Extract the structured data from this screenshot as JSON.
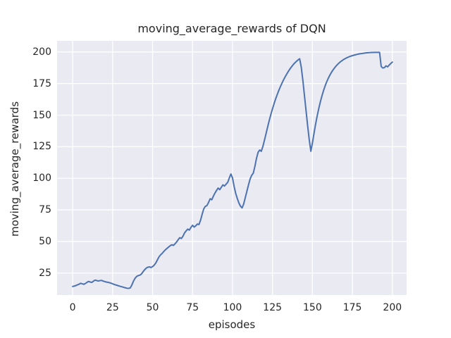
{
  "figure": {
    "title": "moving_average_rewards of DQN",
    "xlabel": "episodes",
    "ylabel": "moving_average_rewards"
  },
  "chart_data": {
    "type": "line",
    "title": "moving_average_rewards of DQN",
    "xlabel": "episodes",
    "ylabel": "moving_average_rewards",
    "xticks": [
      0,
      25,
      50,
      75,
      100,
      125,
      150,
      175,
      200
    ],
    "yticks": [
      25,
      50,
      75,
      100,
      125,
      150,
      175,
      200
    ],
    "xlim": [
      -9.75,
      208.9
    ],
    "ylim": [
      7.6,
      208.8
    ],
    "grid": true,
    "legend": false,
    "axes_bg": "#eaeaf2",
    "grid_color": "#ffffff",
    "line_color": "#4c72b0",
    "text_color": "#262626",
    "series": [
      {
        "name": "DQN moving average rewards",
        "x": [
          0,
          1,
          2,
          3,
          4,
          5,
          6,
          7,
          8,
          9,
          10,
          11,
          12,
          13,
          14,
          15,
          16,
          17,
          18,
          19,
          20,
          21,
          22,
          23,
          24,
          25,
          26,
          27,
          28,
          29,
          30,
          31,
          32,
          33,
          34,
          35,
          36,
          37,
          38,
          39,
          40,
          41,
          42,
          43,
          44,
          45,
          46,
          47,
          48,
          49,
          50,
          51,
          52,
          53,
          54,
          55,
          56,
          57,
          58,
          59,
          60,
          61,
          62,
          63,
          64,
          65,
          66,
          67,
          68,
          69,
          70,
          71,
          72,
          73,
          74,
          75,
          76,
          77,
          78,
          79,
          80,
          81,
          82,
          83,
          84,
          85,
          86,
          87,
          88,
          89,
          90,
          91,
          92,
          93,
          94,
          95,
          96,
          97,
          98,
          99,
          100,
          101,
          102,
          103,
          104,
          105,
          106,
          107,
          108,
          109,
          110,
          111,
          112,
          113,
          114,
          115,
          116,
          117,
          118,
          119,
          120,
          121,
          122,
          123,
          124,
          125,
          126,
          127,
          128,
          129,
          130,
          131,
          132,
          133,
          134,
          135,
          136,
          137,
          138,
          139,
          140,
          141,
          142,
          143,
          144,
          145,
          146,
          147,
          148,
          149,
          150,
          151,
          152,
          153,
          154,
          155,
          156,
          157,
          158,
          159,
          160,
          161,
          162,
          163,
          164,
          165,
          166,
          167,
          168,
          169,
          170,
          171,
          172,
          173,
          174,
          175,
          176,
          177,
          178,
          179,
          180,
          181,
          182,
          183,
          184,
          185,
          186,
          187,
          188,
          189,
          190,
          191,
          192,
          193,
          194,
          195,
          196,
          197,
          198,
          199,
          200
        ],
        "y": [
          14.4,
          14.7,
          15.1,
          15.7,
          16.2,
          16.9,
          16.5,
          16.1,
          16.8,
          17.7,
          18.4,
          17.9,
          17.6,
          18.6,
          19.4,
          19.1,
          18.7,
          19,
          19.2,
          18.7,
          18.3,
          17.9,
          17.7,
          17.4,
          17,
          16.5,
          16,
          15.6,
          15.2,
          14.8,
          14.4,
          14.1,
          13.7,
          13.3,
          13,
          12.9,
          13.2,
          15.5,
          18.5,
          20.8,
          22.3,
          23,
          23.3,
          24.2,
          26,
          27.6,
          28.9,
          29.6,
          29.9,
          29.4,
          30.1,
          31.3,
          33,
          35.4,
          37.8,
          39.4,
          40.6,
          42.1,
          43.4,
          44.5,
          45.6,
          46.6,
          47.4,
          46.9,
          48.1,
          49.6,
          51.4,
          53,
          52.4,
          54.2,
          56.8,
          58.4,
          59.8,
          59,
          61.2,
          62.8,
          61.4,
          62.4,
          63.8,
          63.4,
          66.8,
          71.5,
          75.8,
          77.8,
          78.4,
          80.9,
          83.8,
          83,
          85.8,
          88.3,
          90.4,
          92.3,
          91,
          92.9,
          94.8,
          93.9,
          95.4,
          96.8,
          100.3,
          103.4,
          100.2,
          93.6,
          88,
          84,
          80.4,
          77.9,
          76.6,
          79.8,
          84.8,
          89.8,
          94.8,
          99.4,
          102.4,
          104.1,
          109.5,
          115.8,
          120.6,
          122.4,
          121.4,
          125.3,
          130.2,
          135.5,
          140.8,
          145.9,
          150.6,
          155,
          159.1,
          162.9,
          166.4,
          169.7,
          172.7,
          175.5,
          178.1,
          180.5,
          182.7,
          184.8,
          186.7,
          188.4,
          190,
          191.4,
          192.6,
          193.7,
          194.6,
          188,
          177.5,
          165.5,
          153.5,
          141.5,
          130.5,
          121.4,
          128,
          135.8,
          143,
          149.6,
          155.5,
          160.8,
          165.5,
          169.7,
          173.4,
          176.6,
          179.4,
          181.9,
          184.1,
          186,
          187.7,
          189.2,
          190.5,
          191.7,
          192.7,
          193.6,
          194.4,
          195.1,
          195.7,
          196.2,
          196.7,
          197.1,
          197.5,
          197.8,
          198.1,
          198.4,
          198.6,
          198.8,
          199,
          199.2,
          199.3,
          199.4,
          199.5,
          199.6,
          199.6,
          199.7,
          199.7,
          199.7,
          199.7,
          188.5,
          187.3,
          187.6,
          189,
          188.2,
          189.6,
          190.9,
          192
        ]
      }
    ]
  }
}
